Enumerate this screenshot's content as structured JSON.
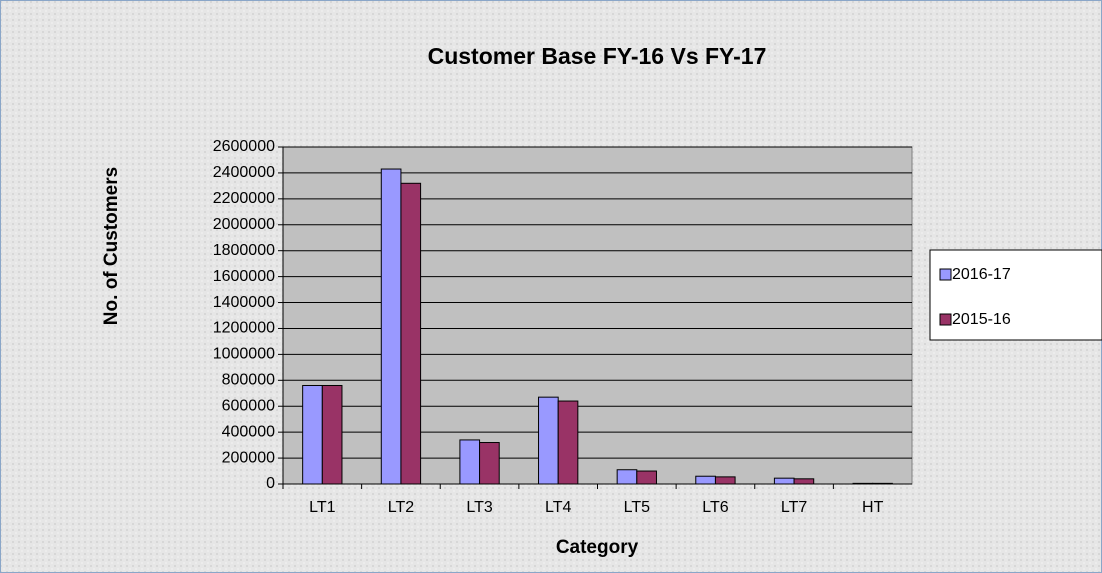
{
  "chart_data": {
    "type": "bar",
    "title": "Customer Base FY-16 Vs FY-17",
    "x_label": "Category",
    "y_label": "No. of Customers",
    "categories": [
      "LT1",
      "LT2",
      "LT3",
      "LT4",
      "LT5",
      "LT6",
      "LT7",
      "HT"
    ],
    "series": [
      {
        "name": "2016-17",
        "color": "#9999ff",
        "values": [
          760000,
          2430000,
          340000,
          670000,
          110000,
          60000,
          45000,
          5000
        ]
      },
      {
        "name": "2015-16",
        "color": "#993366",
        "values": [
          760000,
          2320000,
          320000,
          640000,
          100000,
          55000,
          40000,
          5000
        ]
      }
    ],
    "ylim": [
      0,
      2600000
    ],
    "yticks": [
      0,
      200000,
      400000,
      600000,
      800000,
      1000000,
      1200000,
      1400000,
      1600000,
      1800000,
      2000000,
      2200000,
      2400000,
      2600000
    ],
    "grid": true,
    "legend": "right"
  }
}
